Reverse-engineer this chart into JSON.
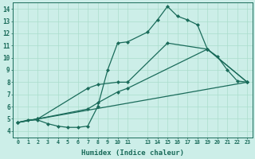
{
  "xlabel": "Humidex (Indice chaleur)",
  "bg_color": "#cceee8",
  "line_color": "#1a6b5a",
  "grid_color": "#aaddcc",
  "xlim": [
    -0.5,
    23.5
  ],
  "ylim": [
    3.5,
    14.5
  ],
  "xtick_positions": [
    0,
    1,
    2,
    3,
    4,
    5,
    6,
    7,
    8,
    9,
    10,
    11,
    13,
    14,
    15,
    16,
    17,
    18,
    19,
    20,
    21,
    22,
    23
  ],
  "xtick_labels": [
    "0",
    "1",
    "2",
    "3",
    "4",
    "5",
    "6",
    "7",
    "8",
    "9",
    "10",
    "11",
    "13",
    "14",
    "15",
    "16",
    "17",
    "18",
    "19",
    "20",
    "21",
    "22",
    "23"
  ],
  "yticks": [
    4,
    5,
    6,
    7,
    8,
    9,
    10,
    11,
    12,
    13,
    14
  ],
  "line1_x": [
    0,
    1,
    2,
    3,
    4,
    5,
    6,
    7,
    8,
    9,
    10,
    11,
    13,
    14,
    15,
    16,
    17,
    18,
    19,
    20,
    21,
    22,
    23
  ],
  "line1_y": [
    4.7,
    4.9,
    4.9,
    4.6,
    4.4,
    4.3,
    4.3,
    4.4,
    6.0,
    9.0,
    11.2,
    11.3,
    12.1,
    13.1,
    14.2,
    13.4,
    13.1,
    12.7,
    10.7,
    10.1,
    9.0,
    8.1,
    8.0
  ],
  "line2_x": [
    0,
    23
  ],
  "line2_y": [
    4.7,
    8.0
  ],
  "line3_x": [
    0,
    2,
    7,
    8,
    10,
    11,
    15,
    19,
    23
  ],
  "line3_y": [
    4.7,
    5.0,
    7.5,
    7.8,
    8.0,
    8.0,
    11.2,
    10.7,
    8.0
  ],
  "line4_x": [
    0,
    2,
    7,
    8,
    10,
    11,
    19,
    23
  ],
  "line4_y": [
    4.7,
    5.0,
    5.8,
    6.3,
    7.2,
    7.5,
    10.7,
    8.0
  ],
  "markersize": 2.5,
  "linewidth": 0.9
}
